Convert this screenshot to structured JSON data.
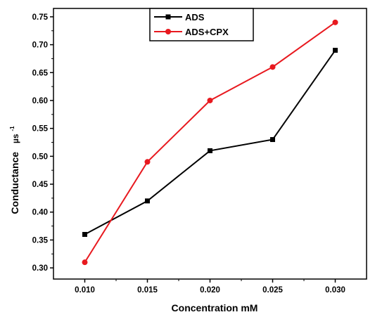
{
  "chart_data": {
    "type": "line",
    "x": [
      0.01,
      0.015,
      0.02,
      0.025,
      0.03
    ],
    "x_tick_labels": [
      "0.010",
      "0.015",
      "0.020",
      "0.025",
      "0.030"
    ],
    "y_ticks": [
      0.3,
      0.35,
      0.4,
      0.45,
      0.5,
      0.55,
      0.6,
      0.65,
      0.7,
      0.75
    ],
    "y_tick_labels": [
      "0.30",
      "0.35",
      "0.40",
      "0.45",
      "0.50",
      "0.55",
      "0.60",
      "0.65",
      "0.70",
      "0.75"
    ],
    "xlabel": "Concentration mM",
    "ylabel": "Conductance",
    "ylabel_unit": "µs",
    "ylabel_unit_exp": "-1",
    "xlim": [
      0.0075,
      0.0325
    ],
    "ylim": [
      0.28,
      0.765
    ],
    "grid": false,
    "legend_position": "top-center",
    "series": [
      {
        "name": "ADS",
        "color": "#000000",
        "marker": "square",
        "values": [
          0.36,
          0.42,
          0.51,
          0.53,
          0.69
        ]
      },
      {
        "name": "ADS+CPX",
        "color": "#e8191f",
        "marker": "circle",
        "values": [
          0.31,
          0.49,
          0.6,
          0.66,
          0.74
        ]
      }
    ]
  }
}
